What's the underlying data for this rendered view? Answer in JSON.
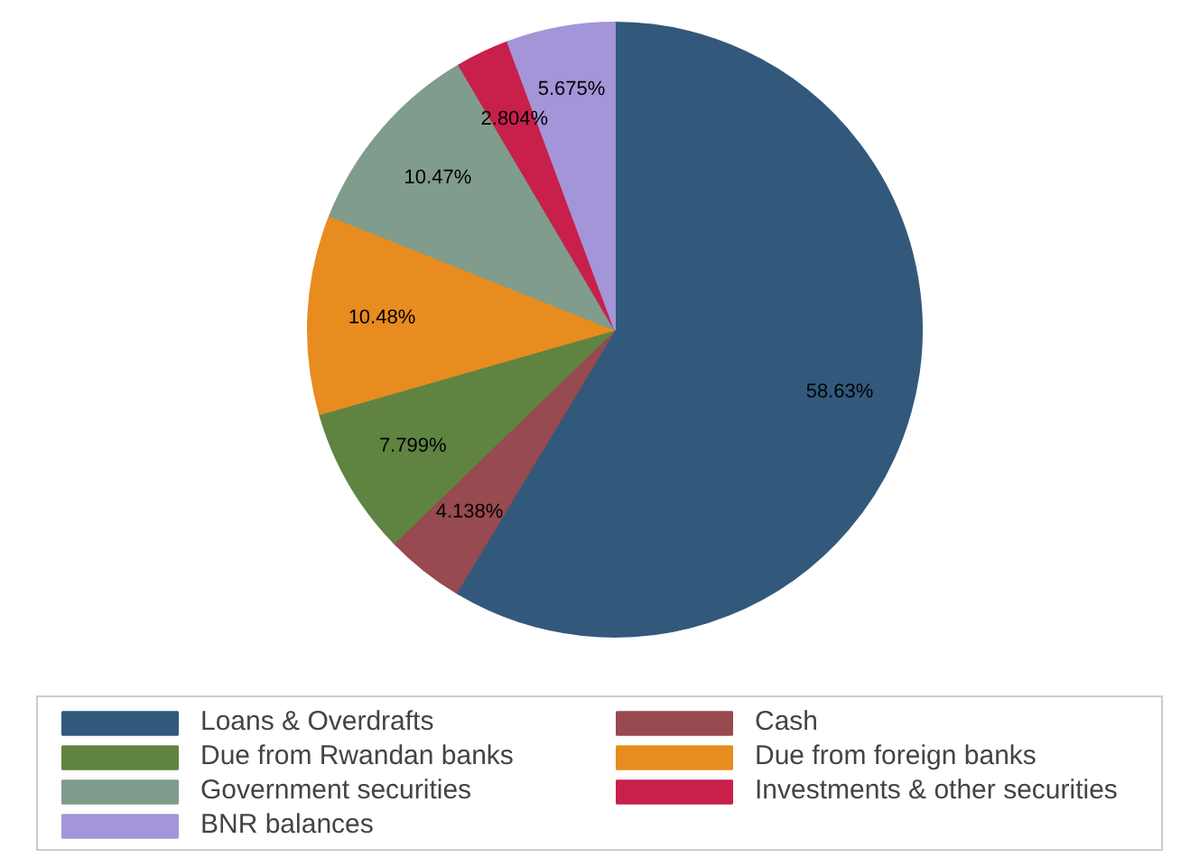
{
  "chart_data": {
    "type": "pie",
    "categories": [
      "Loans & Overdrafts",
      "Cash",
      "Due from Rwandan banks",
      "Due from foreign banks",
      "Government securities",
      "Investments & other securities",
      "BNR balances"
    ],
    "values": [
      58.63,
      4.138,
      7.799,
      10.48,
      10.47,
      2.804,
      5.675
    ],
    "value_labels": [
      "58.63%",
      "4.138%",
      "7.799%",
      "10.48%",
      "10.47%",
      "2.804%",
      "5.675%"
    ],
    "colors": [
      "#32597c",
      "#974a4f",
      "#5f8442",
      "#e88c1f",
      "#7f9c8c",
      "#c8204b",
      "#a495d8"
    ],
    "legend": "bottom"
  }
}
